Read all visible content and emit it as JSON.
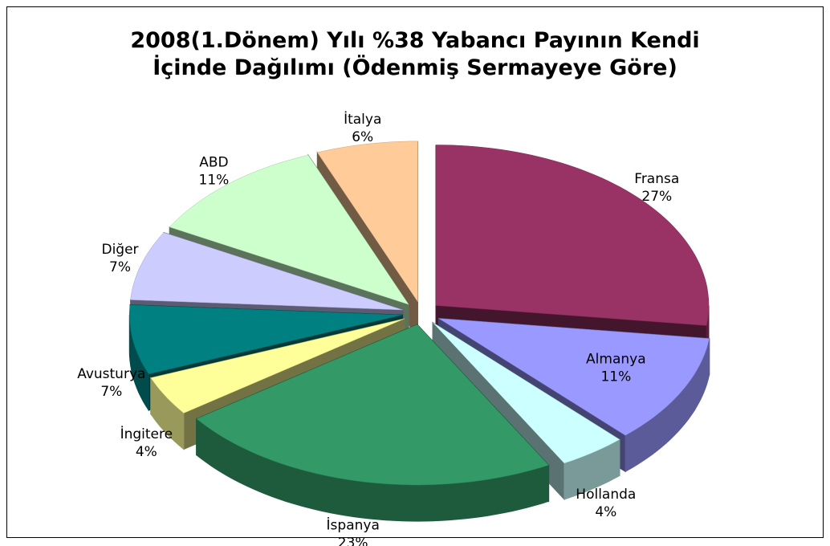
{
  "chart_data": {
    "type": "pie3d",
    "title": "2008(1.Dönem) Yılı %38 Yabancı Payının Kendi İçinde Dağılımı (Ödenmiş Sermayeye Göre)",
    "categories": [
      "Fransa",
      "Almanya",
      "Hollanda",
      "İspanya",
      "İngitere",
      "Avusturya",
      "Diğer",
      "ABD",
      "İtalya"
    ],
    "values": [
      27,
      11,
      4,
      23,
      4,
      7,
      7,
      11,
      6
    ],
    "value_labels": [
      "27%",
      "11%",
      "4%",
      "23%",
      "4%",
      "7%",
      "7%",
      "11%",
      "6%"
    ],
    "colors": [
      "#993366",
      "#9999ff",
      "#ccffff",
      "#339966",
      "#ffff99",
      "#008080",
      "#ccccff",
      "#ccffcc",
      "#ffcc99"
    ]
  }
}
